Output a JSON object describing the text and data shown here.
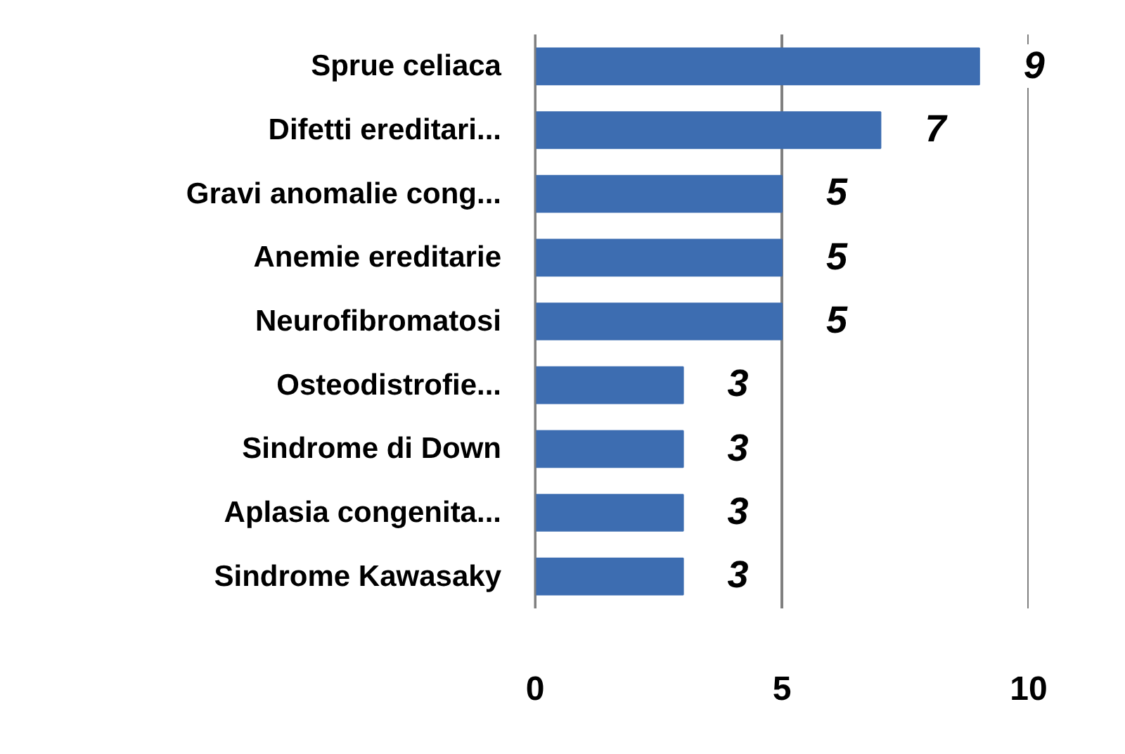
{
  "chart_data": {
    "type": "bar",
    "orientation": "horizontal",
    "categories": [
      "Sprue celiaca",
      "Difetti ereditari...",
      "Gravi anomalie cong...",
      "Anemie ereditarie",
      "Neurofibromatosi",
      "Osteodistrofie...",
      "Sindrome di Down",
      "Aplasia congenita...",
      "Sindrome Kawasaky"
    ],
    "values": [
      9,
      7,
      5,
      5,
      5,
      3,
      3,
      3,
      3
    ],
    "color": "#3d6db1",
    "xlim": [
      0,
      10
    ],
    "xticks": [
      0,
      5,
      10
    ],
    "grid": "x",
    "data_labels": true
  }
}
